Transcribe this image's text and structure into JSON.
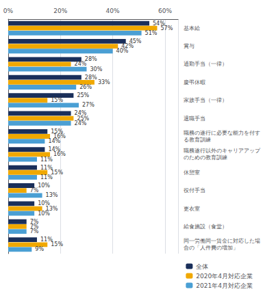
{
  "chart_data": {
    "type": "bar",
    "orientation": "horizontal",
    "categories": [
      "基本給",
      "賞与",
      "通勤手当（一律）",
      "慶弔休暇",
      "家族手当（一律）",
      "退職手当",
      "職務の遂行に必要な能力を付する教育訓練",
      "職務遂行以外のキャリアアップのための教育訓練",
      "休憩室",
      "役付手当",
      "更衣室",
      "給食施設（食堂）",
      "同一労働同一賃金に対応した場合の「人件費の増加」"
    ],
    "series": [
      {
        "name": "全体",
        "color": "#1a2f5a",
        "values": [
          54,
          45,
          28,
          28,
          25,
          24,
          15,
          14,
          11,
          10,
          10,
          7,
          11
        ],
        "value_labels": [
          "54%",
          "45%",
          "28%",
          "28%",
          "25%",
          "24%",
          "15%",
          "14%",
          "11%",
          "10%",
          "10%",
          "7%",
          "11%"
        ]
      },
      {
        "name": "2020年4月対応企業",
        "color": "#f0a800",
        "values": [
          57,
          42,
          24,
          33,
          15,
          25,
          16,
          16,
          15,
          7,
          13,
          7,
          15
        ],
        "value_labels": [
          "57%",
          "42%",
          "24%",
          "33%",
          "15%",
          "25%",
          "16%",
          "16%",
          "15%",
          "7%",
          "13%",
          "7%",
          "15%"
        ]
      },
      {
        "name": "2021年4月対応企業",
        "color": "#4a9fd4",
        "values": [
          51,
          40,
          30,
          26,
          27,
          24,
          14,
          11,
          11,
          13,
          10,
          7,
          9
        ],
        "value_labels": [
          "51%",
          "40%",
          "30%",
          "26%",
          "27%",
          "24%",
          "14%",
          "11%",
          "11%",
          "13%",
          "10%",
          "7%",
          "9%"
        ]
      }
    ],
    "xlim": [
      0,
      65
    ],
    "xticks": [
      {
        "value": 0,
        "label": "0%"
      },
      {
        "value": 20,
        "label": "20%"
      },
      {
        "value": 40,
        "label": "40%"
      },
      {
        "value": 60,
        "label": "60%"
      }
    ],
    "data_labels": true,
    "grid": true,
    "legend": "lower right"
  }
}
